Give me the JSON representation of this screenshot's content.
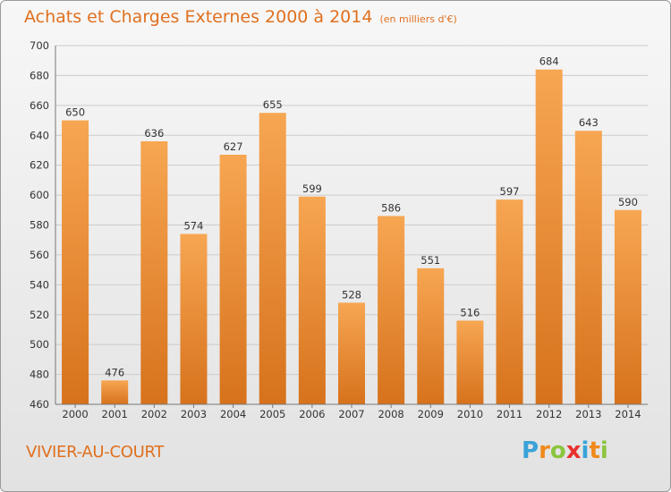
{
  "header": {
    "title": "Achats et Charges Externes 2000 à 2014",
    "unit": "(en milliers d'€)"
  },
  "footer": {
    "commune": "VIVIER-AU-COURT",
    "logo_letters": [
      "P",
      "r",
      "o",
      "x",
      "i",
      "t",
      "i"
    ],
    "logo_colors": [
      "#3aa3d8",
      "#f08a1c",
      "#8bc53f",
      "#e8312f",
      "#3aa3d8",
      "#f08a1c",
      "#8bc53f"
    ]
  },
  "colors": {
    "bar_light": "#f7a652",
    "bar_dark": "#d7721c",
    "accent": "#e0701f",
    "grid": "#cccccc"
  },
  "chart_data": {
    "type": "bar",
    "title": "Achats et Charges Externes 2000 à 2014",
    "subtitle": "(en milliers d'€)",
    "xlabel": "",
    "ylabel": "",
    "categories": [
      "2000",
      "2001",
      "2002",
      "2003",
      "2004",
      "2005",
      "2006",
      "2007",
      "2008",
      "2009",
      "2010",
      "2011",
      "2012",
      "2013",
      "2014"
    ],
    "values": [
      650,
      476,
      636,
      574,
      627,
      655,
      599,
      528,
      586,
      551,
      516,
      597,
      684,
      643,
      590
    ],
    "ylim": [
      460,
      700
    ],
    "yticks": [
      460,
      480,
      500,
      520,
      540,
      560,
      580,
      600,
      620,
      640,
      660,
      680,
      700
    ],
    "grid": true,
    "legend": "none"
  }
}
